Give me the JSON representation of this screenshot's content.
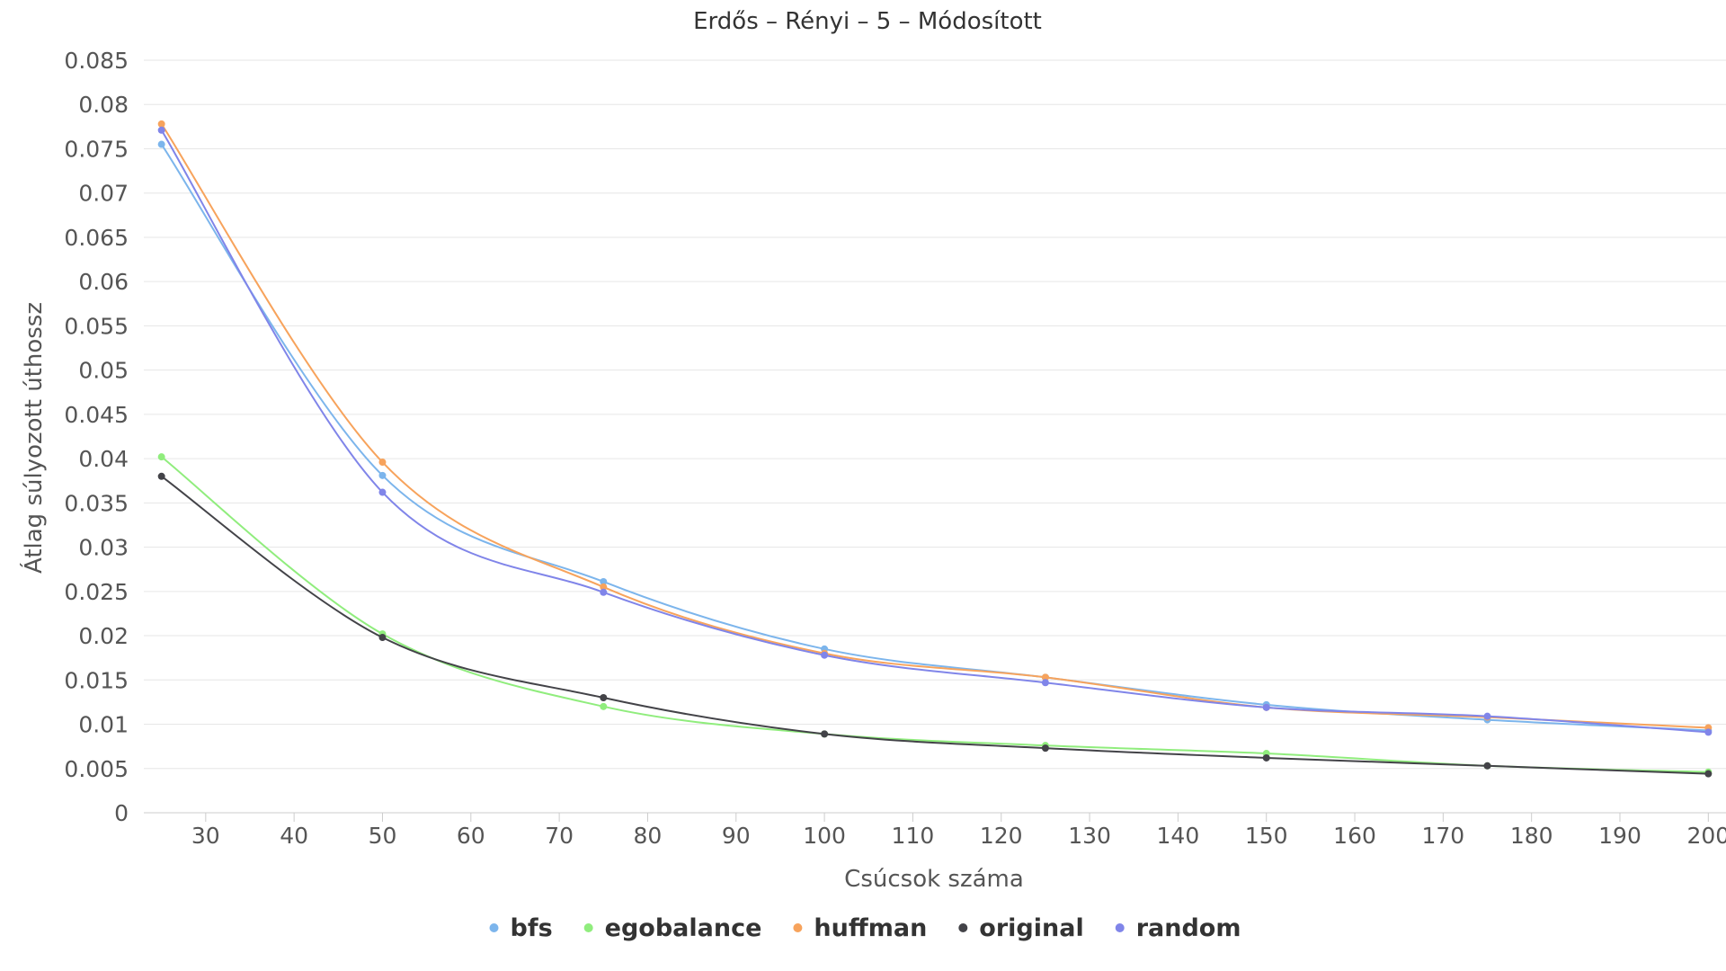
{
  "chart_data": {
    "type": "line",
    "title": "Erdős – Rényi – 5 – Módosított",
    "xlabel": "Csúcsok száma",
    "ylabel": "Átlag súlyozott úthossz",
    "xlim": [
      23,
      202
    ],
    "ylim": [
      0,
      0.085
    ],
    "x_ticks": [
      30,
      40,
      50,
      60,
      70,
      80,
      90,
      100,
      110,
      120,
      130,
      140,
      150,
      160,
      170,
      180,
      190,
      200
    ],
    "y_ticks": [
      0,
      0.005,
      0.01,
      0.015,
      0.02,
      0.025,
      0.03,
      0.035,
      0.04,
      0.045,
      0.05,
      0.055,
      0.06,
      0.065,
      0.07,
      0.075,
      0.08,
      0.085
    ],
    "grid": "horizontal",
    "legend_position": "bottom-center",
    "x": [
      25,
      50,
      75,
      100,
      125,
      150,
      175,
      200
    ],
    "series": [
      {
        "name": "bfs",
        "color": "#7cb5ec",
        "values": [
          0.0755,
          0.0381,
          0.0261,
          0.0185,
          0.0153,
          0.0122,
          0.0105,
          0.0093
        ]
      },
      {
        "name": "egobalance",
        "color": "#90ed7d",
        "values": [
          0.0402,
          0.0202,
          0.012,
          0.0089,
          0.0076,
          0.0067,
          0.0053,
          0.0046
        ]
      },
      {
        "name": "huffman",
        "color": "#f7a35c",
        "values": [
          0.0778,
          0.0396,
          0.0255,
          0.018,
          0.0153,
          0.0119,
          0.0108,
          0.0096
        ]
      },
      {
        "name": "original",
        "color": "#434348",
        "values": [
          0.038,
          0.0198,
          0.013,
          0.0089,
          0.0073,
          0.0062,
          0.0053,
          0.0044
        ]
      },
      {
        "name": "random",
        "color": "#8085e9",
        "values": [
          0.0771,
          0.0362,
          0.0249,
          0.0178,
          0.0147,
          0.0119,
          0.0109,
          0.0091
        ]
      }
    ]
  }
}
